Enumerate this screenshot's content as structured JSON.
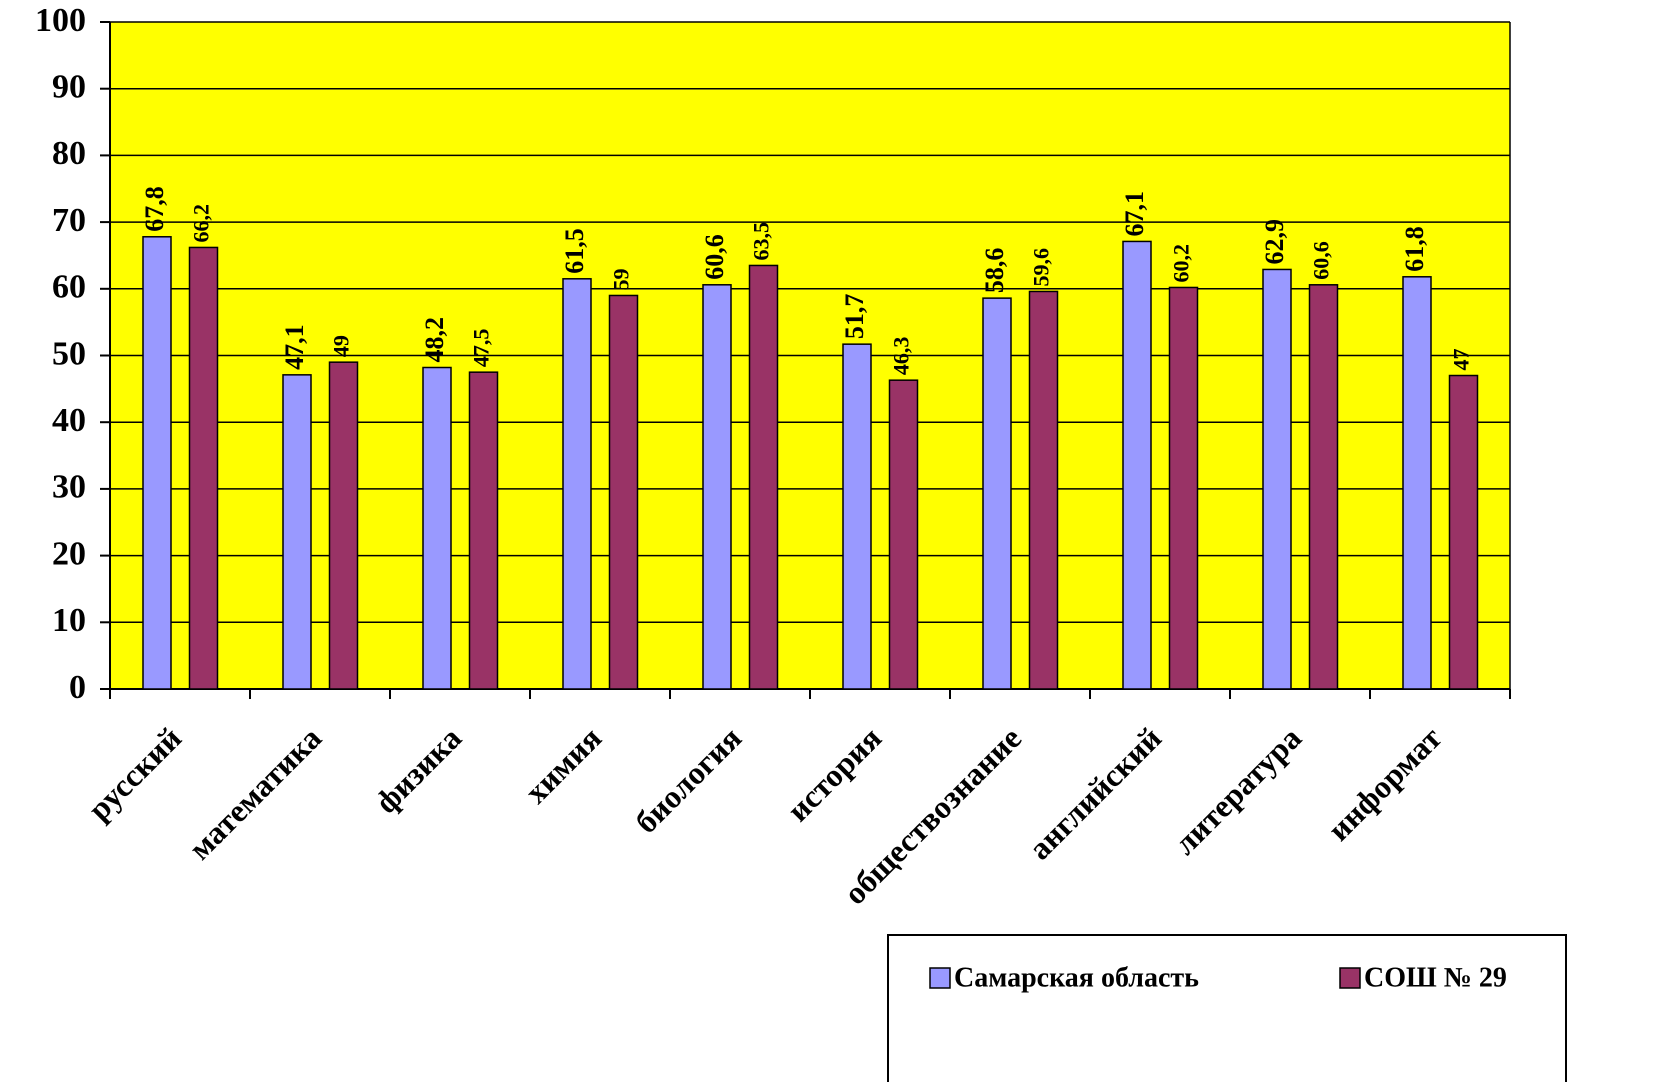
{
  "chart_data": {
    "type": "bar",
    "categories": [
      "русский",
      "математика",
      "физика",
      "химия",
      "биология",
      "история",
      "обществознание",
      "английский",
      "литература",
      "информат"
    ],
    "series": [
      {
        "name": "Самарская область",
        "color": "#9999ff",
        "values": [
          67.8,
          47.1,
          48.2,
          61.5,
          60.6,
          51.7,
          58.6,
          67.1,
          62.9,
          61.8
        ],
        "value_labels": [
          "67,8",
          "47,1",
          "48,2",
          "61,5",
          "60,6",
          "51,7",
          "58,6",
          "67,1",
          "62,9",
          "61,8"
        ]
      },
      {
        "name": "СОШ № 29",
        "color": "#993366",
        "values": [
          66.2,
          49,
          47.5,
          59,
          63.5,
          46.3,
          59.6,
          60.2,
          60.6,
          47
        ],
        "value_labels": [
          "66,2",
          "49",
          "47,5",
          "59",
          "63,5",
          "46,3",
          "59,6",
          "60,2",
          "60,6",
          "47"
        ]
      }
    ],
    "ylim": [
      0,
      100
    ],
    "yticks": [
      0,
      10,
      20,
      30,
      40,
      50,
      60,
      70,
      80,
      90,
      100
    ],
    "grid": true,
    "plot_background": "#ffff00",
    "legend": "bottom-right"
  }
}
